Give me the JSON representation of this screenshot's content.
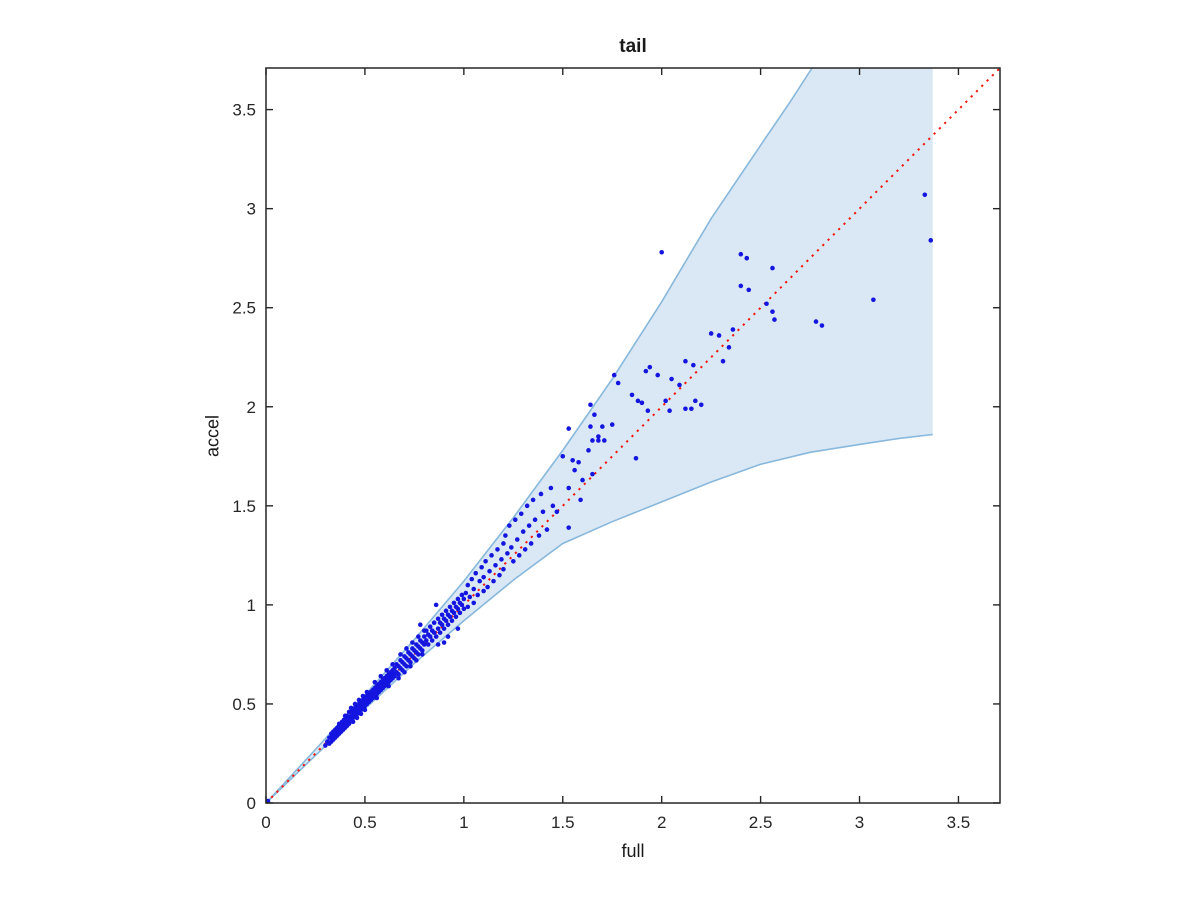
{
  "figure_title": "tail",
  "colors": {
    "axis": "#262626",
    "text": "#1a1a1a",
    "background": "#ffffff"
  },
  "chart_data": {
    "type": "scatter",
    "title": "tail",
    "xlabel": "full",
    "ylabel": "accel",
    "xlim": [
      0,
      3.71
    ],
    "ylim": [
      0,
      3.71
    ],
    "xticks": [
      0,
      0.5,
      1,
      1.5,
      2,
      2.5,
      3,
      3.5
    ],
    "yticks": [
      0,
      0.5,
      1,
      1.5,
      2,
      2.5,
      3,
      3.5
    ],
    "grid": false,
    "legend": null,
    "points_color": "#1515e0",
    "marker_radius_px": 2.3,
    "identity_line": {
      "style": "dotted",
      "color": "#f2180c",
      "from": [
        0,
        0
      ],
      "to": [
        3.71,
        3.71
      ]
    },
    "band": {
      "fill": "#d9e8f4",
      "edge_color": "#88b8dc",
      "x_end": 3.37,
      "upper": [
        [
          0,
          0
        ],
        [
          0.25,
          0.27
        ],
        [
          0.5,
          0.545
        ],
        [
          0.75,
          0.825
        ],
        [
          1.0,
          1.12
        ],
        [
          1.25,
          1.44
        ],
        [
          1.5,
          1.78
        ],
        [
          1.75,
          2.14
        ],
        [
          2.0,
          2.53
        ],
        [
          2.25,
          2.95
        ],
        [
          2.5,
          3.32
        ],
        [
          2.65,
          3.54
        ],
        [
          2.76,
          3.71
        ]
      ],
      "upper_top_run_to": 3.37,
      "lower": [
        [
          0,
          0
        ],
        [
          0.25,
          0.24
        ],
        [
          0.5,
          0.475
        ],
        [
          0.75,
          0.705
        ],
        [
          1.0,
          0.92
        ],
        [
          1.25,
          1.125
        ],
        [
          1.5,
          1.31
        ],
        [
          1.75,
          1.42
        ],
        [
          2.0,
          1.52
        ],
        [
          2.25,
          1.62
        ],
        [
          2.5,
          1.71
        ],
        [
          2.75,
          1.77
        ],
        [
          3.0,
          1.81
        ],
        [
          3.2,
          1.84
        ],
        [
          3.37,
          1.86
        ]
      ]
    },
    "points": [
      [
        0.01,
        0.01
      ],
      [
        0.3,
        0.29
      ],
      [
        0.31,
        0.31
      ],
      [
        0.32,
        0.3
      ],
      [
        0.32,
        0.33
      ],
      [
        0.33,
        0.33
      ],
      [
        0.33,
        0.35
      ],
      [
        0.33,
        0.31
      ],
      [
        0.335,
        0.34
      ],
      [
        0.34,
        0.34
      ],
      [
        0.34,
        0.36
      ],
      [
        0.34,
        0.32
      ],
      [
        0.345,
        0.33
      ],
      [
        0.345,
        0.36
      ],
      [
        0.35,
        0.35
      ],
      [
        0.35,
        0.37
      ],
      [
        0.35,
        0.33
      ],
      [
        0.355,
        0.36
      ],
      [
        0.355,
        0.34
      ],
      [
        0.36,
        0.36
      ],
      [
        0.36,
        0.38
      ],
      [
        0.36,
        0.34
      ],
      [
        0.365,
        0.37
      ],
      [
        0.365,
        0.35
      ],
      [
        0.37,
        0.37
      ],
      [
        0.37,
        0.39
      ],
      [
        0.37,
        0.35
      ],
      [
        0.375,
        0.38
      ],
      [
        0.375,
        0.36
      ],
      [
        0.38,
        0.38
      ],
      [
        0.38,
        0.4
      ],
      [
        0.38,
        0.36
      ],
      [
        0.385,
        0.39
      ],
      [
        0.385,
        0.37
      ],
      [
        0.39,
        0.39
      ],
      [
        0.39,
        0.41
      ],
      [
        0.39,
        0.37
      ],
      [
        0.395,
        0.4
      ],
      [
        0.395,
        0.38
      ],
      [
        0.4,
        0.4
      ],
      [
        0.4,
        0.42
      ],
      [
        0.4,
        0.38
      ],
      [
        0.4,
        0.44
      ],
      [
        0.335,
        0.32
      ],
      [
        0.37,
        0.4
      ],
      [
        0.385,
        0.41
      ],
      [
        0.395,
        0.42
      ],
      [
        0.41,
        0.39
      ],
      [
        0.405,
        0.43
      ],
      [
        0.41,
        0.41
      ],
      [
        0.41,
        0.44
      ],
      [
        0.415,
        0.4
      ],
      [
        0.42,
        0.43
      ],
      [
        0.42,
        0.46
      ],
      [
        0.425,
        0.41
      ],
      [
        0.43,
        0.44
      ],
      [
        0.43,
        0.42
      ],
      [
        0.435,
        0.46
      ],
      [
        0.44,
        0.43
      ],
      [
        0.44,
        0.47
      ],
      [
        0.445,
        0.45
      ],
      [
        0.45,
        0.44
      ],
      [
        0.45,
        0.48
      ],
      [
        0.455,
        0.46
      ],
      [
        0.46,
        0.45
      ],
      [
        0.46,
        0.49
      ],
      [
        0.465,
        0.47
      ],
      [
        0.47,
        0.46
      ],
      [
        0.47,
        0.5
      ],
      [
        0.475,
        0.48
      ],
      [
        0.48,
        0.47
      ],
      [
        0.48,
        0.51
      ],
      [
        0.485,
        0.49
      ],
      [
        0.49,
        0.48
      ],
      [
        0.49,
        0.52
      ],
      [
        0.495,
        0.5
      ],
      [
        0.5,
        0.49
      ],
      [
        0.5,
        0.53
      ],
      [
        0.505,
        0.51
      ],
      [
        0.51,
        0.5
      ],
      [
        0.51,
        0.54
      ],
      [
        0.515,
        0.52
      ],
      [
        0.52,
        0.51
      ],
      [
        0.52,
        0.55
      ],
      [
        0.525,
        0.53
      ],
      [
        0.43,
        0.48
      ],
      [
        0.45,
        0.5
      ],
      [
        0.47,
        0.52
      ],
      [
        0.49,
        0.54
      ],
      [
        0.51,
        0.56
      ],
      [
        0.42,
        0.4
      ],
      [
        0.44,
        0.41
      ],
      [
        0.46,
        0.43
      ],
      [
        0.48,
        0.45
      ],
      [
        0.5,
        0.47
      ],
      [
        0.53,
        0.52
      ],
      [
        0.53,
        0.56
      ],
      [
        0.535,
        0.54
      ],
      [
        0.54,
        0.53
      ],
      [
        0.54,
        0.57
      ],
      [
        0.545,
        0.55
      ],
      [
        0.55,
        0.54
      ],
      [
        0.55,
        0.58
      ],
      [
        0.555,
        0.56
      ],
      [
        0.56,
        0.55
      ],
      [
        0.56,
        0.59
      ],
      [
        0.565,
        0.57
      ],
      [
        0.57,
        0.56
      ],
      [
        0.57,
        0.6
      ],
      [
        0.575,
        0.58
      ],
      [
        0.58,
        0.57
      ],
      [
        0.58,
        0.61
      ],
      [
        0.585,
        0.59
      ],
      [
        0.59,
        0.58
      ],
      [
        0.59,
        0.62
      ],
      [
        0.595,
        0.6
      ],
      [
        0.6,
        0.59
      ],
      [
        0.6,
        0.63
      ],
      [
        0.605,
        0.61
      ],
      [
        0.61,
        0.6
      ],
      [
        0.61,
        0.64
      ],
      [
        0.615,
        0.62
      ],
      [
        0.62,
        0.61
      ],
      [
        0.62,
        0.65
      ],
      [
        0.625,
        0.63
      ],
      [
        0.63,
        0.62
      ],
      [
        0.63,
        0.66
      ],
      [
        0.635,
        0.64
      ],
      [
        0.64,
        0.63
      ],
      [
        0.64,
        0.67
      ],
      [
        0.645,
        0.65
      ],
      [
        0.65,
        0.64
      ],
      [
        0.65,
        0.68
      ],
      [
        0.55,
        0.61
      ],
      [
        0.58,
        0.64
      ],
      [
        0.61,
        0.67
      ],
      [
        0.64,
        0.7
      ],
      [
        0.56,
        0.53
      ],
      [
        0.62,
        0.59
      ],
      [
        0.66,
        0.66
      ],
      [
        0.66,
        0.7
      ],
      [
        0.67,
        0.65
      ],
      [
        0.67,
        0.69
      ],
      [
        0.68,
        0.68
      ],
      [
        0.68,
        0.72
      ],
      [
        0.69,
        0.67
      ],
      [
        0.69,
        0.71
      ],
      [
        0.7,
        0.7
      ],
      [
        0.7,
        0.74
      ],
      [
        0.71,
        0.69
      ],
      [
        0.71,
        0.73
      ],
      [
        0.72,
        0.72
      ],
      [
        0.72,
        0.76
      ],
      [
        0.73,
        0.71
      ],
      [
        0.73,
        0.75
      ],
      [
        0.74,
        0.74
      ],
      [
        0.74,
        0.78
      ],
      [
        0.75,
        0.73
      ],
      [
        0.75,
        0.77
      ],
      [
        0.76,
        0.76
      ],
      [
        0.76,
        0.8
      ],
      [
        0.77,
        0.75
      ],
      [
        0.77,
        0.79
      ],
      [
        0.78,
        0.78
      ],
      [
        0.78,
        0.82
      ],
      [
        0.79,
        0.77
      ],
      [
        0.79,
        0.81
      ],
      [
        0.8,
        0.8
      ],
      [
        0.8,
        0.84
      ],
      [
        0.68,
        0.75
      ],
      [
        0.71,
        0.78
      ],
      [
        0.74,
        0.81
      ],
      [
        0.77,
        0.84
      ],
      [
        0.8,
        0.87
      ],
      [
        0.67,
        0.63
      ],
      [
        0.7,
        0.66
      ],
      [
        0.73,
        0.69
      ],
      [
        0.76,
        0.72
      ],
      [
        0.79,
        0.75
      ],
      [
        0.78,
        0.9
      ],
      [
        0.81,
        0.82
      ],
      [
        0.81,
        0.87
      ],
      [
        0.82,
        0.8
      ],
      [
        0.82,
        0.85
      ],
      [
        0.83,
        0.84
      ],
      [
        0.83,
        0.89
      ],
      [
        0.84,
        0.82
      ],
      [
        0.84,
        0.87
      ],
      [
        0.85,
        0.86
      ],
      [
        0.85,
        0.91
      ],
      [
        0.86,
        0.84
      ],
      [
        0.86,
        1.0
      ],
      [
        0.87,
        0.88
      ],
      [
        0.87,
        0.93
      ],
      [
        0.88,
        0.86
      ],
      [
        0.88,
        0.91
      ],
      [
        0.89,
        0.9
      ],
      [
        0.89,
        0.95
      ],
      [
        0.9,
        0.88
      ],
      [
        0.9,
        0.93
      ],
      [
        0.91,
        0.92
      ],
      [
        0.91,
        0.97
      ],
      [
        0.92,
        0.9
      ],
      [
        0.92,
        0.95
      ],
      [
        0.93,
        0.94
      ],
      [
        0.93,
        0.99
      ],
      [
        0.94,
        0.92
      ],
      [
        0.94,
        0.97
      ],
      [
        0.95,
        0.96
      ],
      [
        0.95,
        1.01
      ],
      [
        0.96,
        0.94
      ],
      [
        0.96,
        0.99
      ],
      [
        0.97,
        0.98
      ],
      [
        0.97,
        1.03
      ],
      [
        0.98,
        0.96
      ],
      [
        0.98,
        1.01
      ],
      [
        0.99,
        1.0
      ],
      [
        0.99,
        1.05
      ],
      [
        1.0,
        0.98
      ],
      [
        1.0,
        1.03
      ],
      [
        0.87,
        0.8
      ],
      [
        0.92,
        0.84
      ],
      [
        0.97,
        0.88
      ],
      [
        0.9,
        0.81
      ],
      [
        1.01,
        1.06
      ],
      [
        1.02,
        0.99
      ],
      [
        1.02,
        1.1
      ],
      [
        1.03,
        1.04
      ],
      [
        1.04,
        1.13
      ],
      [
        1.05,
        1.01
      ],
      [
        1.05,
        1.08
      ],
      [
        1.06,
        1.16
      ],
      [
        1.07,
        1.05
      ],
      [
        1.08,
        1.12
      ],
      [
        1.09,
        1.19
      ],
      [
        1.1,
        1.07
      ],
      [
        1.1,
        1.14
      ],
      [
        1.11,
        1.22
      ],
      [
        1.12,
        1.09
      ],
      [
        1.13,
        1.17
      ],
      [
        1.14,
        1.25
      ],
      [
        1.15,
        1.12
      ],
      [
        1.16,
        1.2
      ],
      [
        1.17,
        1.28
      ],
      [
        1.18,
        1.15
      ],
      [
        1.19,
        1.23
      ],
      [
        1.2,
        1.18
      ],
      [
        1.2,
        1.31
      ],
      [
        1.21,
        1.35
      ],
      [
        1.22,
        1.26
      ],
      [
        1.23,
        1.4
      ],
      [
        1.24,
        1.29
      ],
      [
        1.25,
        1.22
      ],
      [
        1.26,
        1.43
      ],
      [
        1.27,
        1.33
      ],
      [
        1.28,
        1.25
      ],
      [
        1.29,
        1.46
      ],
      [
        1.3,
        1.37
      ],
      [
        1.31,
        1.28
      ],
      [
        1.32,
        1.5
      ],
      [
        1.33,
        1.4
      ],
      [
        1.34,
        1.31
      ],
      [
        1.35,
        1.53
      ],
      [
        1.36,
        1.43
      ],
      [
        1.38,
        1.35
      ],
      [
        1.39,
        1.56
      ],
      [
        1.4,
        1.47
      ],
      [
        1.42,
        1.38
      ],
      [
        1.44,
        1.59
      ],
      [
        1.45,
        1.5
      ],
      [
        1.47,
        1.47
      ],
      [
        1.5,
        1.75
      ],
      [
        1.53,
        1.89
      ],
      [
        1.53,
        1.59
      ],
      [
        1.53,
        1.39
      ],
      [
        1.55,
        1.73
      ],
      [
        1.56,
        1.68
      ],
      [
        1.58,
        1.72
      ],
      [
        1.59,
        1.53
      ],
      [
        1.6,
        1.63
      ],
      [
        1.63,
        1.78
      ],
      [
        1.64,
        2.01
      ],
      [
        1.64,
        1.9
      ],
      [
        1.65,
        1.83
      ],
      [
        1.65,
        1.66
      ],
      [
        1.66,
        1.96
      ],
      [
        1.68,
        1.83
      ],
      [
        1.68,
        1.85
      ],
      [
        1.7,
        1.9
      ],
      [
        1.71,
        1.83
      ],
      [
        1.75,
        1.91
      ],
      [
        1.76,
        2.16
      ],
      [
        1.78,
        2.12
      ],
      [
        1.85,
        2.06
      ],
      [
        1.87,
        1.74
      ],
      [
        1.88,
        2.03
      ],
      [
        1.9,
        2.02
      ],
      [
        1.92,
        2.18
      ],
      [
        1.93,
        1.98
      ],
      [
        1.94,
        2.2
      ],
      [
        1.98,
        2.16
      ],
      [
        2.0,
        2.78
      ],
      [
        2.02,
        2.03
      ],
      [
        2.04,
        1.98
      ],
      [
        2.05,
        2.14
      ],
      [
        2.09,
        2.11
      ],
      [
        2.12,
        2.23
      ],
      [
        2.12,
        1.99
      ],
      [
        2.15,
        1.99
      ],
      [
        2.16,
        2.21
      ],
      [
        2.17,
        2.03
      ],
      [
        2.2,
        2.01
      ],
      [
        2.25,
        2.37
      ],
      [
        2.29,
        2.36
      ],
      [
        2.31,
        2.23
      ],
      [
        2.34,
        2.3
      ],
      [
        2.36,
        2.39
      ],
      [
        2.4,
        2.77
      ],
      [
        2.4,
        2.61
      ],
      [
        2.43,
        2.75
      ],
      [
        2.44,
        2.59
      ],
      [
        2.53,
        2.52
      ],
      [
        2.56,
        2.7
      ],
      [
        2.56,
        2.48
      ],
      [
        2.57,
        2.44
      ],
      [
        2.78,
        2.43
      ],
      [
        2.81,
        2.41
      ],
      [
        3.07,
        2.54
      ],
      [
        3.33,
        3.07
      ],
      [
        3.36,
        2.84
      ]
    ]
  }
}
